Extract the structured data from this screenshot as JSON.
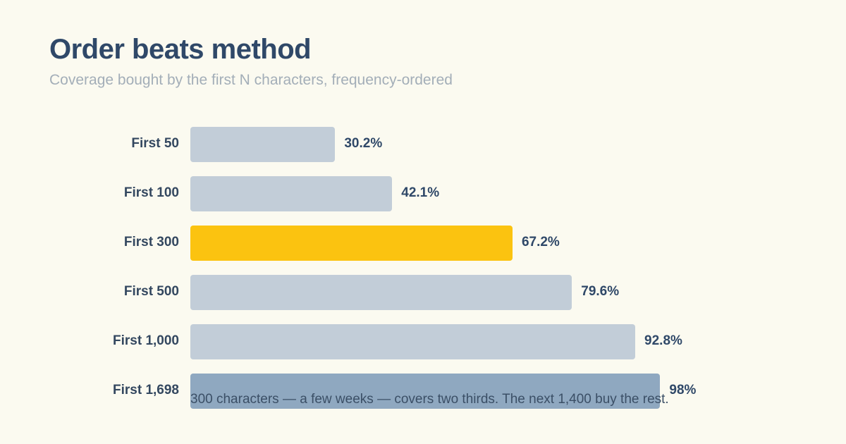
{
  "title": "Order beats method",
  "subtitle": "Coverage bought by the first N characters, frequency-ordered",
  "footnote": "300 characters — a few weeks — covers two thirds. The next 1,400 buy the rest.",
  "colors": {
    "default_bar": "#c2cdd8",
    "highlight_bar": "#fbc310",
    "final_bar": "#8fa8c0",
    "background": "#fbfaf0"
  },
  "chart_data": {
    "type": "bar",
    "orientation": "horizontal",
    "title": "Order beats method",
    "subtitle": "Coverage bought by the first N characters, frequency-ordered",
    "categories": [
      "First 50",
      "First 100",
      "First 300",
      "First 500",
      "First 1,000",
      "First 1,698"
    ],
    "values": [
      30.2,
      42.1,
      67.2,
      79.6,
      92.8,
      98
    ],
    "value_labels": [
      "30.2%",
      "42.1%",
      "67.2%",
      "79.6%",
      "92.8%",
      "98%"
    ],
    "unit": "%",
    "xlim": [
      0,
      100
    ],
    "highlight_index": 2,
    "final_index": 5,
    "grid": false,
    "legend": "none"
  }
}
